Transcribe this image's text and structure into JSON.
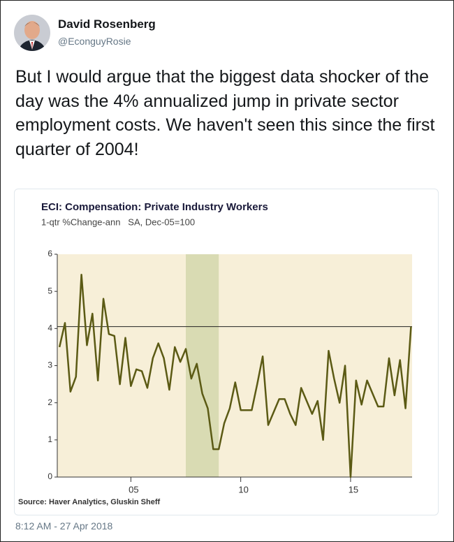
{
  "tweet": {
    "name": "David Rosenberg",
    "handle": "@EconguyRosie",
    "text": "But I would argue that the biggest data shocker of the day was the 4% annualized jump in private sector employment costs. We haven't seen this since the first quarter of 2004!",
    "timestamp": "8:12 AM - 27 Apr 2018"
  },
  "chart_data": {
    "type": "line",
    "title": "ECI: Compensation: Private Industry Workers",
    "subtitle": "1-qtr %Change-ann   SA, Dec-05=100",
    "source": "Source: Haver Analytics, Gluskin Sheff",
    "x": [
      2001.75,
      2002,
      2002.25,
      2002.5,
      2002.75,
      2003,
      2003.25,
      2003.5,
      2003.75,
      2004,
      2004.25,
      2004.5,
      2004.75,
      2005,
      2005.25,
      2005.5,
      2005.75,
      2006,
      2006.25,
      2006.5,
      2006.75,
      2007,
      2007.25,
      2007.5,
      2007.75,
      2008,
      2008.25,
      2008.5,
      2008.75,
      2009,
      2009.25,
      2009.5,
      2009.75,
      2010,
      2010.25,
      2010.5,
      2010.75,
      2011,
      2011.25,
      2011.5,
      2011.75,
      2012,
      2012.25,
      2012.5,
      2012.75,
      2013,
      2013.25,
      2013.5,
      2013.75,
      2014,
      2014.25,
      2014.5,
      2014.75,
      2015,
      2015.25,
      2015.5,
      2015.75,
      2016,
      2016.25,
      2016.5,
      2016.75,
      2017,
      2017.25,
      2017.5,
      2017.75
    ],
    "series": [
      {
        "color": "#5b5a14",
        "values": [
          3.5,
          4.15,
          2.3,
          2.7,
          5.45,
          3.55,
          4.4,
          2.6,
          4.8,
          3.85,
          3.8,
          2.5,
          3.75,
          2.45,
          2.9,
          2.85,
          2.4,
          3.2,
          3.6,
          3.2,
          2.35,
          3.5,
          3.1,
          3.45,
          2.65,
          3.05,
          2.25,
          1.85,
          0.75,
          0.75,
          1.45,
          1.85,
          2.55,
          1.8,
          1.8,
          1.8,
          2.5,
          3.25,
          1.4,
          1.75,
          2.1,
          2.1,
          1.7,
          1.4,
          2.4,
          2.05,
          1.7,
          2.05,
          1.0,
          3.4,
          2.65,
          2.0,
          3.0,
          0.0,
          2.6,
          1.95,
          2.6,
          2.25,
          1.9,
          1.9,
          3.2,
          2.2,
          3.15,
          1.85,
          4.05
        ]
      }
    ],
    "xlim": [
      2001.65,
      2017.8
    ],
    "xticks": [
      {
        "value": 2005,
        "label": "05"
      },
      {
        "value": 2010,
        "label": "10"
      },
      {
        "value": 2015,
        "label": "15"
      }
    ],
    "ylim": [
      0,
      6
    ],
    "yticks": [
      0,
      1,
      2,
      3,
      4,
      5,
      6
    ],
    "reference_line": 4.05,
    "shaded_ranges": [
      [
        2007.5,
        2009.0
      ]
    ],
    "background": "#f7efd8",
    "shade_color": "#d9dbb3"
  }
}
